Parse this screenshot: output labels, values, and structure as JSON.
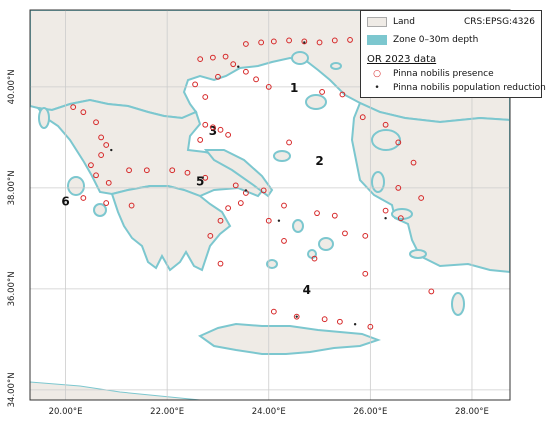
{
  "legend": {
    "land_label": "Land",
    "crs_label": "CRS:EPSG:4326",
    "zone_label": "Zone 0–30m depth",
    "data_title": "OR 2023 data",
    "presence_label": "Pinna nobilis presence",
    "reduction_label": "Pinna nobilis population reduction"
  },
  "colors": {
    "land": "#efebe6",
    "sea": "#ffffff",
    "zone": "#7cc7cf",
    "grid": "#cccccc",
    "presence_marker": "#d62728",
    "reduction_marker": "#222222"
  },
  "axes": {
    "x_ticks": [
      {
        "lon": 20,
        "label": "20.00°E"
      },
      {
        "lon": 22,
        "label": "22.00°E"
      },
      {
        "lon": 24,
        "label": "24.00°E"
      },
      {
        "lon": 26,
        "label": "26.00°E"
      },
      {
        "lon": 28,
        "label": "28.00°E"
      }
    ],
    "y_ticks": [
      {
        "lat": 34,
        "label": "34.00°N"
      },
      {
        "lat": 36,
        "label": "36.00°N"
      },
      {
        "lat": 38,
        "label": "38.00°N"
      },
      {
        "lat": 40,
        "label": "40.00°N"
      }
    ]
  },
  "zones": [
    {
      "label": "1",
      "lon": 24.5,
      "lat": 39.9
    },
    {
      "label": "2",
      "lon": 25.0,
      "lat": 38.45
    },
    {
      "label": "3",
      "lon": 22.9,
      "lat": 39.05
    },
    {
      "label": "4",
      "lon": 24.75,
      "lat": 35.9
    },
    {
      "label": "5",
      "lon": 22.65,
      "lat": 38.05
    },
    {
      "label": "6",
      "lon": 20.0,
      "lat": 37.65
    }
  ],
  "presence_points": [
    [
      23.55,
      40.85
    ],
    [
      23.85,
      40.88
    ],
    [
      24.1,
      40.9
    ],
    [
      24.4,
      40.92
    ],
    [
      24.7,
      40.9
    ],
    [
      25.0,
      40.88
    ],
    [
      25.3,
      40.92
    ],
    [
      25.6,
      40.93
    ],
    [
      25.9,
      40.9
    ],
    [
      22.65,
      40.55
    ],
    [
      22.9,
      40.58
    ],
    [
      23.15,
      40.6
    ],
    [
      23.3,
      40.45
    ],
    [
      23.55,
      40.3
    ],
    [
      23.75,
      40.15
    ],
    [
      22.55,
      40.05
    ],
    [
      22.75,
      39.8
    ],
    [
      23.0,
      40.2
    ],
    [
      24.0,
      40.0
    ],
    [
      20.15,
      39.6
    ],
    [
      20.35,
      39.5
    ],
    [
      20.6,
      39.3
    ],
    [
      20.7,
      39.0
    ],
    [
      20.8,
      38.85
    ],
    [
      20.7,
      38.65
    ],
    [
      20.5,
      38.45
    ],
    [
      20.6,
      38.25
    ],
    [
      20.85,
      38.1
    ],
    [
      21.25,
      38.35
    ],
    [
      21.6,
      38.35
    ],
    [
      22.1,
      38.35
    ],
    [
      22.4,
      38.3
    ],
    [
      22.75,
      38.2
    ],
    [
      23.35,
      38.05
    ],
    [
      23.55,
      37.9
    ],
    [
      23.45,
      37.7
    ],
    [
      23.2,
      37.6
    ],
    [
      23.05,
      37.35
    ],
    [
      22.85,
      37.05
    ],
    [
      23.05,
      36.5
    ],
    [
      22.9,
      39.2
    ],
    [
      23.05,
      39.15
    ],
    [
      23.2,
      39.05
    ],
    [
      22.75,
      39.25
    ],
    [
      22.65,
      38.95
    ],
    [
      24.4,
      38.9
    ],
    [
      25.05,
      39.9
    ],
    [
      25.45,
      39.85
    ],
    [
      25.85,
      39.4
    ],
    [
      26.3,
      39.25
    ],
    [
      26.55,
      38.9
    ],
    [
      26.85,
      38.5
    ],
    [
      26.55,
      38.0
    ],
    [
      27.0,
      37.8
    ],
    [
      26.3,
      37.55
    ],
    [
      26.6,
      37.4
    ],
    [
      24.95,
      37.5
    ],
    [
      25.3,
      37.45
    ],
    [
      25.5,
      37.1
    ],
    [
      25.9,
      37.05
    ],
    [
      24.3,
      36.95
    ],
    [
      24.9,
      36.6
    ],
    [
      25.9,
      36.3
    ],
    [
      25.1,
      35.4
    ],
    [
      25.4,
      35.35
    ],
    [
      24.1,
      35.55
    ],
    [
      24.55,
      35.45
    ],
    [
      26.0,
      35.25
    ],
    [
      27.2,
      35.95
    ],
    [
      20.35,
      37.8
    ],
    [
      20.8,
      37.7
    ],
    [
      21.3,
      37.65
    ],
    [
      24.0,
      37.35
    ],
    [
      24.3,
      37.65
    ],
    [
      23.9,
      37.95
    ]
  ],
  "reduction_points": [
    [
      24.7,
      40.88
    ],
    [
      23.4,
      40.4
    ],
    [
      20.9,
      38.75
    ],
    [
      22.7,
      38.2
    ],
    [
      24.2,
      37.35
    ],
    [
      25.7,
      35.3
    ],
    [
      23.55,
      37.95
    ],
    [
      24.55,
      35.45
    ],
    [
      26.3,
      37.4
    ]
  ]
}
